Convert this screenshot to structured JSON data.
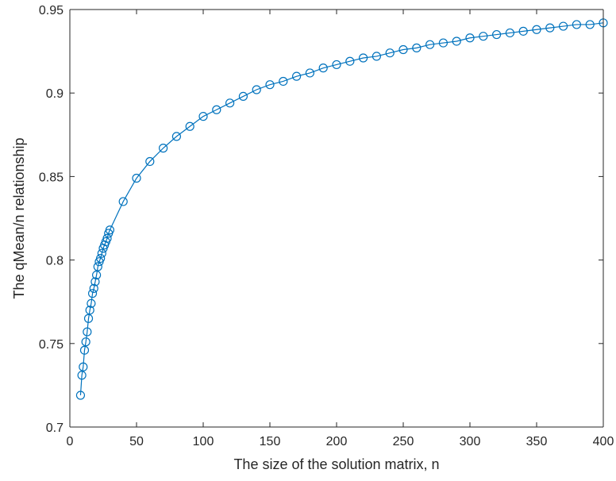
{
  "chart_data": {
    "type": "line",
    "title": "",
    "xlabel": "The size of the solution matrix, n",
    "ylabel": "The qMean/n relationship",
    "xlim": [
      0,
      400
    ],
    "ylim": [
      0.7,
      0.95
    ],
    "xticks": [
      0,
      50,
      100,
      150,
      200,
      250,
      300,
      350,
      400
    ],
    "yticks": [
      0.7,
      0.75,
      0.8,
      0.85,
      0.9,
      0.95
    ],
    "xtick_labels": [
      "0",
      "50",
      "100",
      "150",
      "200",
      "250",
      "300",
      "350",
      "400"
    ],
    "ytick_labels": [
      "0.7",
      "0.75",
      "0.8",
      "0.85",
      "0.9",
      "0.95"
    ],
    "grid": false,
    "marker": "circle",
    "series": [
      {
        "color": "#0072bd",
        "x": [
          8,
          9,
          10,
          11,
          12,
          13,
          14,
          15,
          16,
          17,
          18,
          19,
          20,
          21,
          22,
          23,
          24,
          25,
          26,
          27,
          28,
          29,
          30,
          40,
          50,
          60,
          70,
          80,
          90,
          100,
          110,
          120,
          130,
          140,
          150,
          160,
          170,
          180,
          190,
          200,
          210,
          220,
          230,
          240,
          250,
          260,
          270,
          280,
          290,
          300,
          310,
          320,
          330,
          340,
          350,
          360,
          370,
          380,
          390,
          400
        ],
        "y": [
          0.719,
          0.731,
          0.736,
          0.746,
          0.751,
          0.757,
          0.765,
          0.77,
          0.774,
          0.78,
          0.783,
          0.787,
          0.791,
          0.796,
          0.799,
          0.801,
          0.804,
          0.807,
          0.809,
          0.811,
          0.813,
          0.816,
          0.818,
          0.835,
          0.849,
          0.859,
          0.867,
          0.874,
          0.88,
          0.886,
          0.89,
          0.894,
          0.898,
          0.902,
          0.905,
          0.907,
          0.91,
          0.912,
          0.915,
          0.917,
          0.919,
          0.921,
          0.922,
          0.924,
          0.926,
          0.927,
          0.929,
          0.93,
          0.931,
          0.933,
          0.934,
          0.935,
          0.936,
          0.937,
          0.938,
          0.939,
          0.94,
          0.941,
          0.941,
          0.942
        ]
      }
    ]
  }
}
